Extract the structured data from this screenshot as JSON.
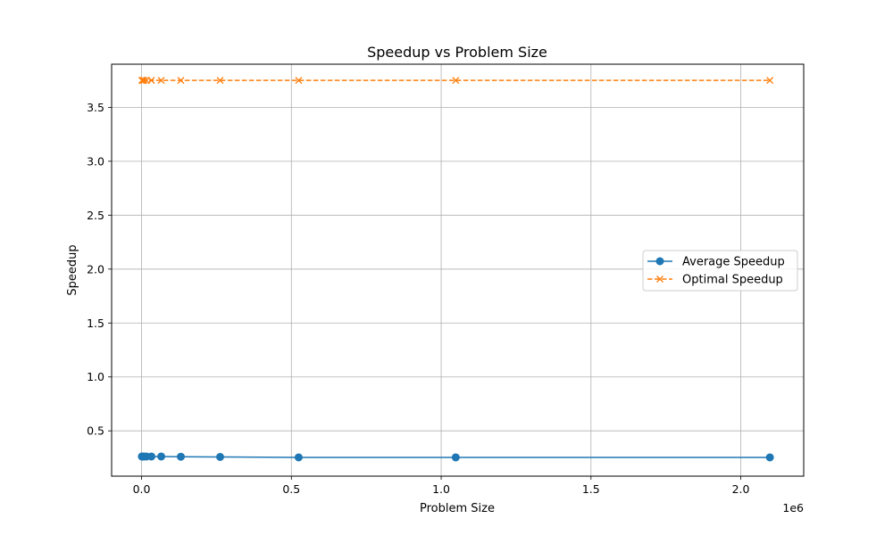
{
  "chart_data": {
    "type": "line",
    "title": "Speedup vs Problem Size",
    "xlabel": "Problem Size",
    "ylabel": "Speedup",
    "x_offset_label": "1e6",
    "xlim": [
      -100000,
      2210000
    ],
    "ylim": [
      0.08,
      3.9
    ],
    "x_ticks": [
      0,
      500000,
      1000000,
      1500000,
      2000000
    ],
    "x_tick_labels": [
      "0.0",
      "0.5",
      "1.0",
      "1.5",
      "2.0"
    ],
    "y_ticks": [
      0.5,
      1.0,
      1.5,
      2.0,
      2.5,
      3.0,
      3.5
    ],
    "y_tick_labels": [
      "0.5",
      "1.0",
      "1.5",
      "2.0",
      "2.5",
      "3.0",
      "3.5"
    ],
    "grid": true,
    "legend_position": "center-right",
    "x": [
      1024,
      2048,
      4096,
      8192,
      16384,
      32768,
      65536,
      131072,
      262144,
      524288,
      1048576,
      2097152
    ],
    "series": [
      {
        "name": "Average Speedup",
        "color": "#1f77b4",
        "line_style": "solid",
        "marker": "circle",
        "values": [
          0.262,
          0.262,
          0.262,
          0.262,
          0.262,
          0.262,
          0.262,
          0.26,
          0.258,
          0.254,
          0.254,
          0.254
        ]
      },
      {
        "name": "Optimal Speedup",
        "color": "#ff7f0e",
        "line_style": "dashed",
        "marker": "x",
        "values": [
          3.75,
          3.75,
          3.75,
          3.75,
          3.75,
          3.75,
          3.75,
          3.75,
          3.75,
          3.75,
          3.75,
          3.75
        ]
      }
    ]
  }
}
